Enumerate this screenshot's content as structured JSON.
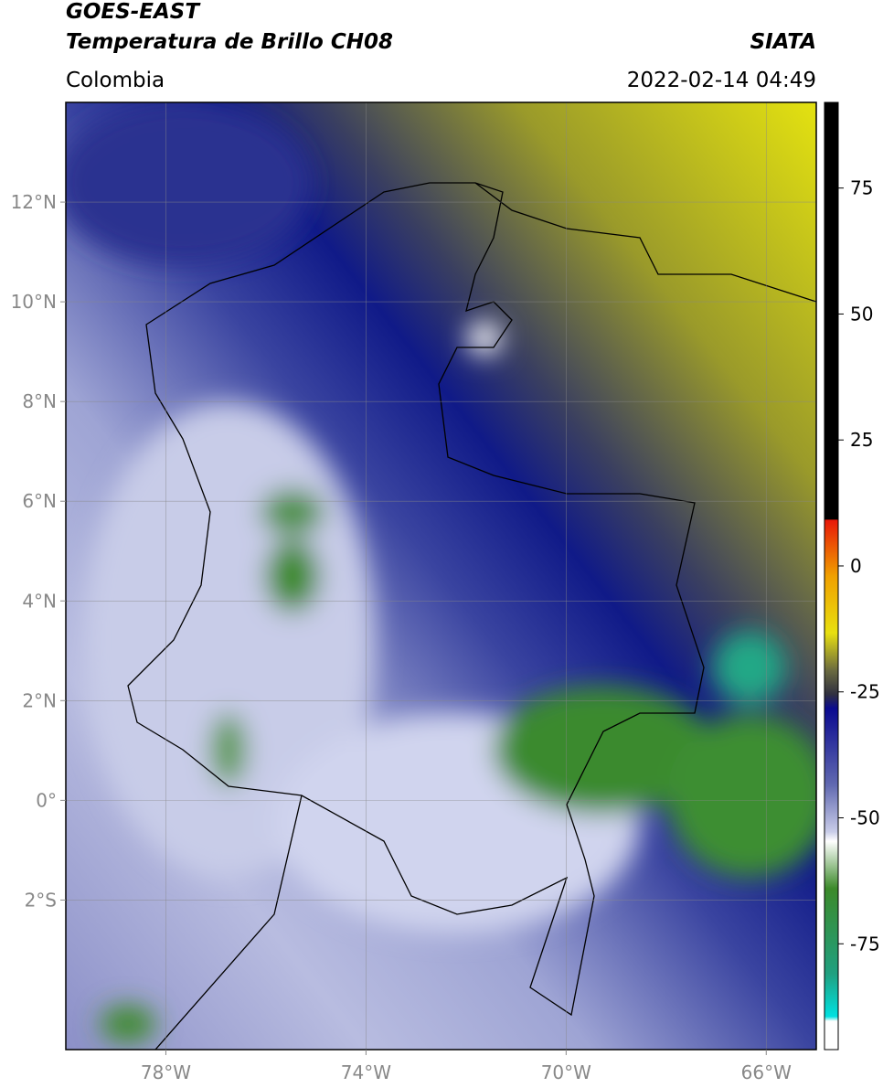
{
  "header": {
    "title": "GOES-EAST",
    "subtitle": "Temperatura de Brillo CH08",
    "source": "SIATA",
    "region": "Colombia",
    "timestamp": "2022-02-14 04:49"
  },
  "map": {
    "lon_range": [
      -80,
      -65
    ],
    "lat_range": [
      -5,
      14
    ],
    "grid": true,
    "lon_ticks": [
      {
        "value": -78,
        "label": "78°W"
      },
      {
        "value": -74,
        "label": "74°W"
      },
      {
        "value": -70,
        "label": "70°W"
      },
      {
        "value": -66,
        "label": "66°W"
      }
    ],
    "lat_ticks": [
      {
        "value": 12,
        "label": "12°N"
      },
      {
        "value": 10,
        "label": "10°N"
      },
      {
        "value": 8,
        "label": "8°N"
      },
      {
        "value": 6,
        "label": "6°N"
      },
      {
        "value": 4,
        "label": "4°N"
      },
      {
        "value": 2,
        "label": "2°N"
      },
      {
        "value": 0,
        "label": "0°"
      },
      {
        "value": -2,
        "label": "2°S"
      }
    ]
  },
  "colorbar": {
    "range": [
      -96,
      92
    ],
    "ticks": [
      75,
      50,
      25,
      0,
      -25,
      -50,
      -75
    ]
  }
}
